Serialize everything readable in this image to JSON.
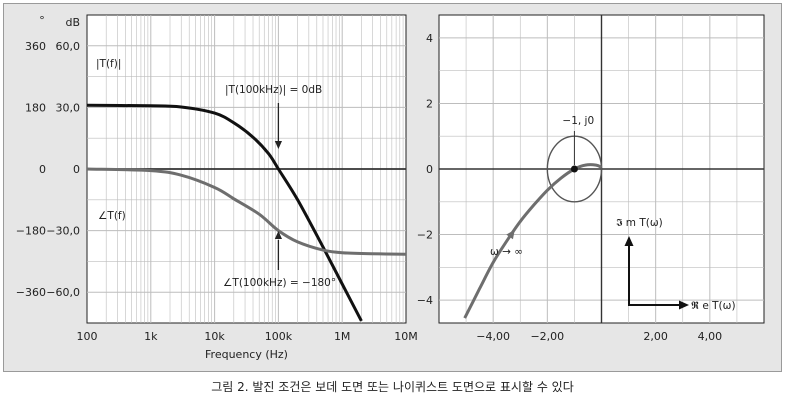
{
  "caption": "그림 2. 발진 조건은 보데 도면 또는 나이퀴스트 도면으로 표시할 수 있다",
  "colors": {
    "panel_bg": "#e6e6e6",
    "plot_bg": "#ffffff",
    "grid": "#bdbdbd",
    "magnitude_curve": "#111111",
    "phase_curve": "#6e6e6e",
    "nyquist_curve": "#6e6e6e",
    "axes": "#222222"
  },
  "chart_data": [
    {
      "type": "line",
      "name": "bode",
      "xlabel": "Frequency (Hz)",
      "x_scale": "log",
      "xlim": [
        100,
        10000000
      ],
      "x_ticks": [
        "100",
        "1k",
        "10k",
        "100k",
        "1M",
        "10M"
      ],
      "y_left_unit": "°",
      "y_right_unit": "dB",
      "y_left_ticks": [
        "360",
        "180",
        "0",
        "−180",
        "−360"
      ],
      "y_right_ticks": [
        "60,0",
        "30,0",
        "0",
        "−30,0",
        "−60,0"
      ],
      "ylim_db": [
        -75,
        75
      ],
      "grid": true,
      "series": [
        {
          "name": "|T(f)|",
          "unit": "dB",
          "x": [
            100,
            1000,
            3000,
            10000,
            20000,
            40000,
            70000,
            100000,
            200000,
            500000,
            1000000,
            2000000
          ],
          "values": [
            31,
            30.8,
            30.2,
            27.2,
            22.5,
            15.5,
            7.5,
            0,
            -15,
            -38,
            -56,
            -74
          ]
        },
        {
          "name": "∠T(f)",
          "unit": "dB-equivalent",
          "x": [
            100,
            1000,
            3000,
            10000,
            20000,
            50000,
            100000,
            200000,
            500000,
            1000000,
            3000000,
            10000000
          ],
          "values": [
            0,
            -0.8,
            -3,
            -9,
            -14.5,
            -22,
            -30,
            -35.5,
            -39.5,
            -40.8,
            -41.3,
            -41.5
          ]
        }
      ],
      "annotations": {
        "mag_label": "|T(f)|",
        "phase_label": "∠T(f)",
        "mag_crossing": "|T(100kHz)| = 0dB",
        "phase_crossing": "∠T(100kHz) = −180°"
      }
    },
    {
      "type": "line",
      "name": "nyquist",
      "xlim": [
        -6,
        6
      ],
      "ylim": [
        -4.7,
        4.7
      ],
      "x_ticks": [
        -4,
        -2,
        2,
        4
      ],
      "x_tick_labels": [
        "−4,00",
        "−2,00",
        "2,00",
        "4,00"
      ],
      "y_ticks": [
        4,
        2,
        0,
        -2,
        -4
      ],
      "y_tick_labels": [
        "4",
        "2",
        "0",
        "−2",
        "−4"
      ],
      "grid": true,
      "series": [
        {
          "name": "",
          "x": [
            -5.05,
            -4.5,
            -4.0,
            -3.5,
            -3.0,
            -2.5,
            -2.0,
            -1.5,
            -1.0,
            -0.6,
            -0.2,
            0.0
          ],
          "y": [
            -4.55,
            -3.65,
            -2.85,
            -2.2,
            -1.6,
            -1.1,
            -0.65,
            -0.28,
            0.0,
            0.12,
            0.12,
            0.05
          ]
        }
      ],
      "unit_circle": {
        "center": [
          -1,
          0
        ],
        "radius": 1
      },
      "critical_point": {
        "x": -1,
        "y": 0
      },
      "annotations": {
        "critical_point_label": "−1, j0",
        "omega_label": "ω → ∞",
        "imag_axis_label": "𝕴 m T(ω)",
        "real_axis_label": "𝕽 e T(ω)"
      }
    }
  ]
}
